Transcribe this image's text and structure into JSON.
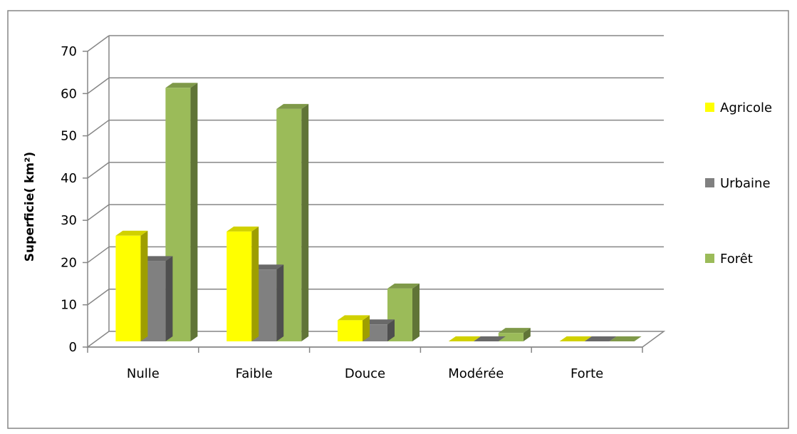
{
  "chart_data": {
    "type": "bar",
    "title": "",
    "xlabel": "",
    "ylabel": "Superficie( km²)",
    "ylim": [
      0,
      70
    ],
    "yticks": [
      "0",
      "10",
      "20",
      "30",
      "40",
      "50",
      "60",
      "70"
    ],
    "grid": true,
    "legend_position": "right",
    "categories": [
      "Nulle",
      "Faible",
      "Douce",
      "Modérée",
      "Forte"
    ],
    "series": [
      {
        "name": "Agricole",
        "color": "#ffff00",
        "values": [
          25,
          26,
          5,
          0,
          0
        ]
      },
      {
        "name": "Urbaine",
        "color": "#808080",
        "values": [
          19,
          17,
          4,
          0,
          0
        ]
      },
      {
        "name": "Forêt",
        "color": "#9bbb59",
        "values": [
          60,
          55,
          12.5,
          2,
          0
        ]
      }
    ]
  }
}
